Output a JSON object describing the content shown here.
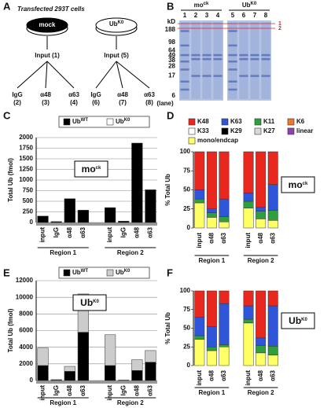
{
  "panel_labels": [
    "A",
    "B",
    "C",
    "D",
    "E",
    "F"
  ],
  "diagram": {
    "title": "Transfected 293T cells",
    "conditions": [
      {
        "label": "mock",
        "input": "Input (1)",
        "ips": [
          {
            "name": "IgG",
            "lane": "(2)"
          },
          {
            "name": "α48",
            "lane": "(3)"
          },
          {
            "name": "α63",
            "lane": "(4)"
          }
        ]
      },
      {
        "label": "UbK0",
        "input": "Input (5)",
        "ips": [
          {
            "name": "IgG",
            "lane": "(6)"
          },
          {
            "name": "α48",
            "lane": "(7)"
          },
          {
            "name": "α63",
            "lane": "(8)"
          }
        ]
      }
    ],
    "lane_note": "(lane)"
  },
  "gel": {
    "groups": [
      "mock",
      "UbK0"
    ],
    "lanes": [
      "1",
      "2",
      "3",
      "4",
      "5",
      "6",
      "7",
      "8"
    ],
    "unit": "kD",
    "markers": [
      188,
      98,
      64,
      49,
      38,
      28,
      17,
      6
    ],
    "red_marks": [
      "1",
      "2"
    ]
  },
  "chart_data": [
    {
      "type": "bar",
      "stacked": true,
      "ylabel": "Total Ub (fmol)",
      "annotation": "mock",
      "grid": true,
      "legend": "top",
      "categories": [
        "input",
        "IgG",
        "α48",
        "α63",
        null,
        "input",
        "IgG",
        "α48",
        "α63"
      ],
      "group_labels": [
        "Region 1",
        "Region 2"
      ],
      "series": [
        {
          "name": "UbWT",
          "color": "#000000",
          "values": [
            150,
            20,
            560,
            290,
            null,
            350,
            30,
            1870,
            770
          ]
        },
        {
          "name": "UbK0",
          "color": "#ffffff",
          "values": [
            0,
            0,
            0,
            0,
            null,
            0,
            0,
            0,
            0
          ]
        }
      ],
      "ylim": [
        0,
        2000
      ],
      "yticks": [
        0,
        250,
        500,
        750,
        1000,
        1250,
        1500,
        1750,
        2000
      ]
    },
    {
      "type": "bar",
      "stacked": true,
      "ylabel": "% Total Ub",
      "annotation": "mock",
      "grid": false,
      "legend": "top",
      "categories": [
        "input",
        "α48",
        "α63",
        null,
        "input",
        "α48",
        "α63"
      ],
      "group_labels": [
        "Region 1",
        "Region 2"
      ],
      "series": [
        {
          "name": "mono/endcap",
          "color": "#ffff66",
          "values": [
            33,
            14,
            8,
            null,
            26,
            12,
            10
          ]
        },
        {
          "name": "K11",
          "color": "#2e9e3e",
          "values": [
            5,
            6,
            7,
            null,
            9,
            10,
            13
          ]
        },
        {
          "name": "K6",
          "color": "#f07828",
          "values": [
            0,
            0,
            0,
            null,
            0,
            0,
            0
          ]
        },
        {
          "name": "K27",
          "color": "#d9d9d9",
          "values": [
            0,
            0,
            0,
            null,
            0,
            0,
            0
          ]
        },
        {
          "name": "K29",
          "color": "#000000",
          "values": [
            0,
            0,
            0,
            null,
            0,
            0,
            0
          ]
        },
        {
          "name": "K33",
          "color": "#ffffff",
          "values": [
            0,
            0,
            0,
            null,
            0,
            0,
            0
          ]
        },
        {
          "name": "linear",
          "color": "#8e44ad",
          "values": [
            0,
            0,
            0,
            null,
            0,
            0,
            0
          ]
        },
        {
          "name": "K63",
          "color": "#2f56d8",
          "values": [
            12,
            5,
            23,
            null,
            11,
            5,
            34
          ]
        },
        {
          "name": "K48",
          "color": "#e8281e",
          "values": [
            50,
            75,
            62,
            null,
            54,
            73,
            43
          ]
        }
      ],
      "ylim": [
        0,
        100
      ],
      "yticks": [
        0,
        25,
        50,
        75,
        100
      ]
    },
    {
      "type": "bar",
      "stacked": true,
      "ylabel": "Total Ub (fmol)",
      "annotation": "UbK0",
      "grid": true,
      "legend": "top",
      "categories": [
        "input",
        "IgG",
        "α48",
        "α63",
        null,
        "input",
        "IgG",
        "α48",
        "α63"
      ],
      "group_labels": [
        "Region 1",
        "Region 2"
      ],
      "series": [
        {
          "name": "UbWT",
          "color": "#000000",
          "values": [
            1800,
            50,
            1100,
            5800,
            null,
            1800,
            50,
            1200,
            2200
          ]
        },
        {
          "name": "UbK0",
          "color": "#cccccc",
          "values": [
            2100,
            50,
            600,
            4600,
            null,
            3700,
            0,
            1300,
            1400
          ]
        }
      ],
      "ylim": [
        0,
        12000
      ],
      "yticks": [
        0,
        2000,
        4000,
        6000,
        8000,
        10000,
        12000
      ]
    },
    {
      "type": "bar",
      "stacked": true,
      "ylabel": "% Total Ub",
      "annotation": "UbK0",
      "grid": false,
      "legend": "none",
      "categories": [
        "input",
        "α48",
        "α63",
        null,
        "input",
        "α48",
        "α63"
      ],
      "group_labels": [
        "Region 1",
        "Region 2"
      ],
      "series": [
        {
          "color": "#ffff66",
          "values": [
            35,
            20,
            25,
            null,
            57,
            17,
            14
          ]
        },
        {
          "color": "#2e9e3e",
          "values": [
            5,
            5,
            3,
            null,
            5,
            10,
            12
          ]
        },
        {
          "color": "#2f56d8",
          "values": [
            25,
            27,
            55,
            null,
            18,
            10,
            54
          ]
        },
        {
          "color": "#e8281e",
          "values": [
            35,
            48,
            17,
            null,
            20,
            63,
            20
          ]
        }
      ],
      "ylim": [
        0,
        100
      ],
      "yticks": [
        0,
        25,
        50,
        75,
        100
      ]
    }
  ]
}
